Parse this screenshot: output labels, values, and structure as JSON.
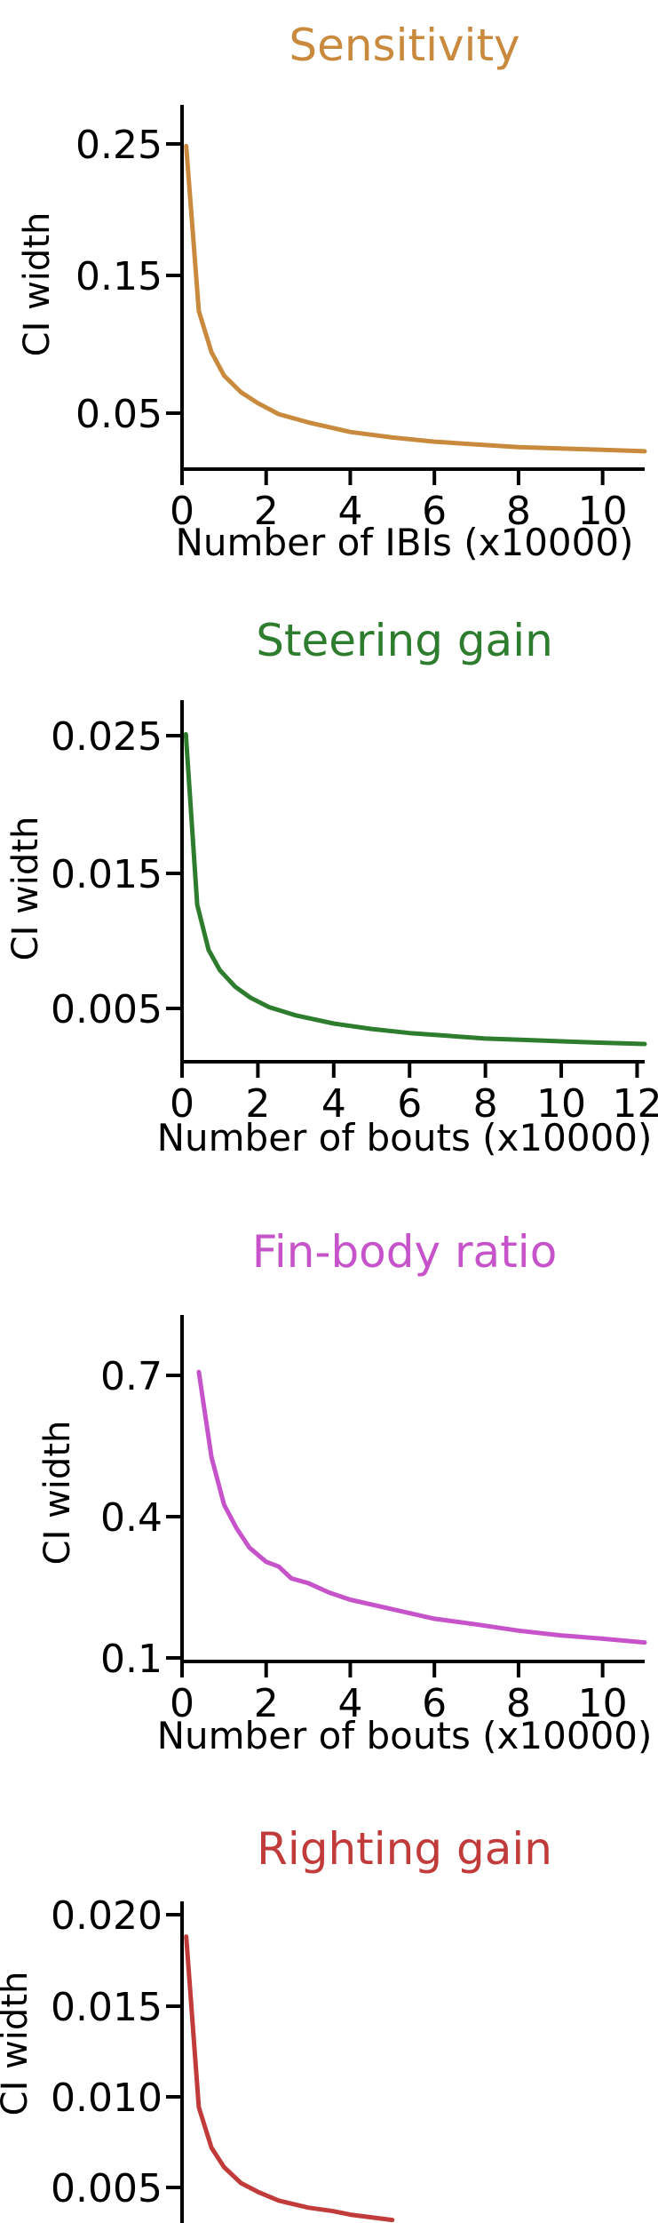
{
  "chart_data": [
    {
      "type": "line",
      "title": "Sensitivity",
      "color": "#c98a3e",
      "xlabel": "Number of IBIs (x10000)",
      "ylabel": "CI width",
      "xlim": [
        0,
        11
      ],
      "ylim": [
        0.01,
        0.275
      ],
      "xticks": [
        "0",
        "2",
        "4",
        "6",
        "8",
        "10"
      ],
      "yticks": [
        "0.25",
        "0.15",
        "0.05"
      ],
      "x": [
        0.1,
        0.4,
        0.7,
        1.0,
        1.4,
        1.8,
        2.3,
        3,
        4,
        5,
        6,
        7,
        8,
        9,
        10,
        11
      ],
      "y": [
        0.245,
        0.125,
        0.095,
        0.078,
        0.066,
        0.058,
        0.05,
        0.044,
        0.037,
        0.033,
        0.03,
        0.028,
        0.026,
        0.025,
        0.024,
        0.023
      ]
    },
    {
      "type": "line",
      "title": "Steering gain",
      "color": "#2e7d2e",
      "xlabel": "Number of bouts (x10000)",
      "ylabel": "CI width",
      "xlim": [
        0,
        12.2
      ],
      "ylim": [
        0.001,
        0.0275
      ],
      "xticks": [
        "0",
        "2",
        "4",
        "6",
        "8",
        "10",
        "12"
      ],
      "yticks": [
        "0.025",
        "0.015",
        "0.005"
      ],
      "x": [
        0.1,
        0.4,
        0.7,
        1.0,
        1.4,
        1.8,
        2.3,
        3,
        4,
        5,
        6,
        7,
        8,
        9,
        10,
        11,
        12.2
      ],
      "y": [
        0.025,
        0.0125,
        0.0092,
        0.0077,
        0.0065,
        0.0057,
        0.005,
        0.0044,
        0.0038,
        0.0034,
        0.0031,
        0.0029,
        0.0027,
        0.0026,
        0.0025,
        0.0024,
        0.0023
      ]
    },
    {
      "type": "line",
      "title": "Fin-body ratio",
      "color": "#c653c9",
      "xlabel": "Number of bouts (x10000)",
      "ylabel": "CI width",
      "xlim": [
        0,
        11
      ],
      "ylim": [
        0.09,
        0.82
      ],
      "xticks": [
        "0",
        "2",
        "4",
        "6",
        "8",
        "10"
      ],
      "yticks": [
        "0.7",
        "0.4",
        "0.1"
      ],
      "x": [
        0.4,
        0.7,
        1.0,
        1.3,
        1.6,
        2.0,
        2.3,
        2.6,
        3,
        3.5,
        4,
        5,
        6,
        7,
        8,
        9,
        10,
        11
      ],
      "y": [
        0.7,
        0.52,
        0.42,
        0.37,
        0.33,
        0.3,
        0.29,
        0.265,
        0.255,
        0.235,
        0.22,
        0.2,
        0.18,
        0.168,
        0.155,
        0.145,
        0.138,
        0.13
      ]
    },
    {
      "type": "line",
      "title": "Righting gain",
      "color": "#c23b3b",
      "xlabel": "",
      "ylabel": "CI width",
      "xlim": [
        0,
        11
      ],
      "ylim": [
        0,
        0.0212
      ],
      "xticks": [],
      "yticks": [
        "0.020",
        "0.015",
        "0.010",
        "0.005"
      ],
      "x": [
        0.1,
        0.4,
        0.7,
        1.0,
        1.4,
        1.8,
        2.3,
        3,
        3.6,
        4,
        5
      ],
      "y": [
        0.0192,
        0.0095,
        0.0072,
        0.0061,
        0.0052,
        0.0047,
        0.0042,
        0.0038,
        0.0036,
        0.0034,
        0.0031
      ]
    }
  ]
}
